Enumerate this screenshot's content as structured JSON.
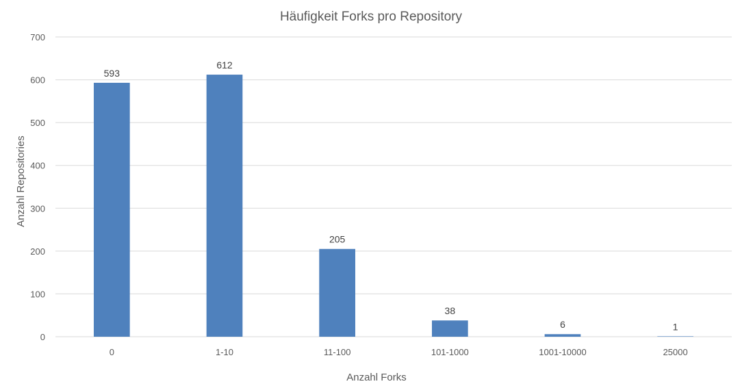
{
  "chart_data": {
    "type": "bar",
    "title": "Häufigkeit  Forks pro Repository",
    "xlabel": "Anzahl Forks",
    "ylabel": "Anzahl Repositories",
    "categories": [
      "0",
      "1-10",
      "11-100",
      "101-1000",
      "1001-10000",
      "25000"
    ],
    "values": [
      593,
      612,
      205,
      38,
      6,
      1
    ],
    "ylim": [
      0,
      700
    ],
    "yticks": [
      0,
      100,
      200,
      300,
      400,
      500,
      600,
      700
    ],
    "grid": true,
    "legend": "none",
    "bar_color": "#4f81bd"
  }
}
